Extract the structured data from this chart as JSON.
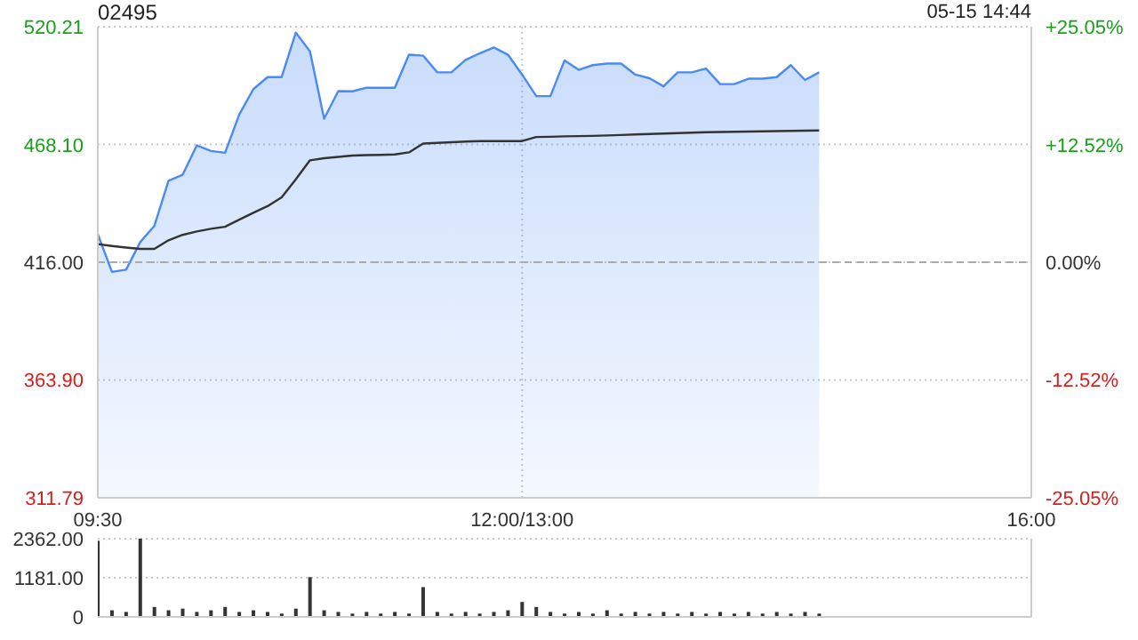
{
  "chart_data": [
    {
      "type": "area",
      "title": "02495",
      "annotations": [
        "05-15 14:44"
      ],
      "categories": [
        "09:30",
        null,
        null,
        null,
        null,
        null,
        null,
        null,
        null,
        null,
        null,
        null,
        null,
        null,
        null,
        null,
        null,
        null,
        null,
        null,
        null,
        null,
        null,
        null,
        null,
        null,
        null,
        null,
        null,
        null,
        "12:00/13:00",
        null,
        null,
        null,
        null,
        null,
        null,
        null,
        null,
        null,
        null,
        null,
        null,
        null,
        null,
        null,
        null,
        null,
        null,
        null,
        null,
        null,
        null,
        null,
        null,
        null,
        null,
        null,
        null,
        null,
        null,
        null,
        null,
        null,
        null,
        null,
        "16:00"
      ],
      "ylim": [
        311.79,
        520.21
      ],
      "yticks": [
        {
          "value": 311.79,
          "label": "311.79"
        },
        {
          "value": 363.9,
          "label": "363.90"
        },
        {
          "value": 416,
          "label": "416.00"
        },
        {
          "value": 468.1,
          "label": "468.10"
        },
        {
          "value": 520.21,
          "label": "520.21"
        }
      ],
      "y2lim": [
        -25.05,
        25.05
      ],
      "y2ticks": [
        {
          "value": -25.05,
          "label": "-25.05%"
        },
        {
          "value": -12.52,
          "label": "-12.52%"
        },
        {
          "value": 0,
          "label": "0.00%"
        },
        {
          "value": 12.52,
          "label": "+12.52%"
        },
        {
          "value": 25.05,
          "label": "+25.05%"
        }
      ],
      "grid": true,
      "legend": false,
      "ref_lines": [
        {
          "axis": "y",
          "value": 416,
          "color": "#aaaaaa",
          "line_style": "dashed"
        }
      ],
      "series": [
        {
          "color": "#4a8af4",
          "values": [
            428.4,
            411.7,
            412.7,
            424.9,
            432.1,
            452,
            454.7,
            467.7,
            465.2,
            464.4,
            481.3,
            492.6,
            497.9,
            497.9,
            517.6,
            509.3,
            479.5,
            491.7,
            491.6,
            493.2,
            493.2,
            493.2,
            507.8,
            507.4,
            500,
            500,
            505.5,
            508.4,
            511,
            507.8,
            499,
            489.5,
            489.5,
            505.3,
            501.1,
            503.2,
            503.9,
            503.9,
            499,
            497.4,
            493.8,
            500,
            500,
            501.7,
            494.8,
            494.8,
            497.2,
            497.2,
            497.9,
            503.2,
            496.6,
            500,
            null,
            null,
            null,
            null,
            null,
            null,
            null,
            null,
            null,
            null,
            null,
            null,
            null,
            null,
            null
          ]
        },
        {
          "type": "line",
          "color": "#333333",
          "values": [
            424,
            423.2,
            422.5,
            421.9,
            421.9,
            425.7,
            428.1,
            429.6,
            430.8,
            431.7,
            434.8,
            437.9,
            440.8,
            444.7,
            452.7,
            461.1,
            462,
            462.6,
            463.2,
            463.4,
            463.5,
            463.7,
            464.6,
            468.5,
            468.8,
            469.1,
            469.4,
            469.6,
            469.6,
            469.6,
            469.6,
            471.4,
            471.5,
            471.7,
            471.8,
            471.9,
            472.1,
            472.3,
            472.5,
            472.7,
            472.9,
            473.1,
            473.3,
            473.5,
            473.6,
            473.7,
            473.8,
            473.9,
            474,
            474.1,
            474.2,
            474.3,
            null,
            null,
            null,
            null,
            null,
            null,
            null,
            null,
            null,
            null,
            null,
            null,
            null,
            null,
            null
          ]
        }
      ]
    },
    {
      "type": "bar",
      "tick_labels": "y",
      "grid": "y",
      "legend": false,
      "categories": [
        null,
        null,
        null,
        null,
        null,
        null,
        null,
        null,
        null,
        null,
        null,
        null,
        null,
        null,
        null,
        null,
        null,
        null,
        null,
        null,
        null,
        null,
        null,
        null,
        null,
        null,
        null,
        null,
        null,
        null,
        null,
        null,
        null,
        null,
        null,
        null,
        null,
        null,
        null,
        null,
        null,
        null,
        null,
        null,
        null,
        null,
        null,
        null,
        null,
        null,
        null,
        null,
        null,
        null,
        null,
        null,
        null,
        null,
        null,
        null,
        null,
        null,
        null,
        null,
        null,
        null,
        null
      ],
      "yticks": [
        0,
        {
          "value": 1181,
          "label": "1181.00"
        },
        {
          "value": 2362,
          "label": "2362.00"
        }
      ],
      "ylim": [
        0,
        2362
      ],
      "series": [
        {
          "color": "#333333",
          "values": [
            2300,
            200,
            150,
            2362,
            300,
            200,
            250,
            150,
            200,
            300,
            150,
            200,
            150,
            100,
            250,
            1200,
            200,
            150,
            100,
            150,
            100,
            150,
            100,
            900,
            150,
            100,
            150,
            100,
            150,
            200,
            450,
            300,
            150,
            100,
            150,
            100,
            200,
            100,
            150,
            100,
            150,
            100,
            150,
            100,
            150,
            100,
            150,
            100,
            150,
            100,
            150,
            100,
            null,
            null,
            null,
            null,
            null,
            null,
            null,
            null,
            null,
            null,
            null,
            null,
            null,
            null,
            null
          ]
        }
      ]
    }
  ]
}
